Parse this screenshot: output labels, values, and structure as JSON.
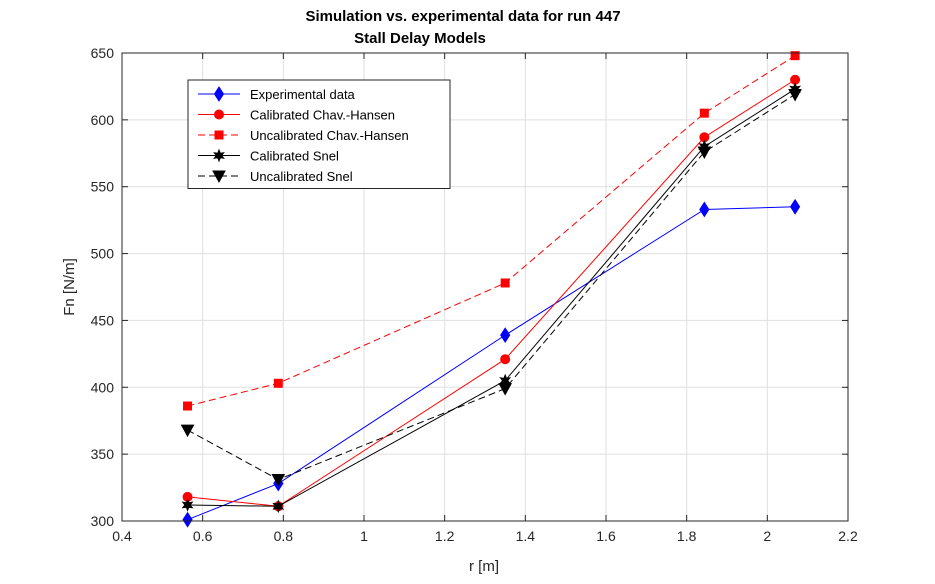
{
  "chart_data": {
    "type": "line",
    "title": "Simulation vs. experimental data for run 447",
    "subtitle": "Stall Delay Models",
    "xlabel": "r [m]",
    "ylabel": "Fn [N/m]",
    "xlim": [
      0.4,
      2.2
    ],
    "ylim": [
      300,
      650
    ],
    "xticks": [
      0.4,
      0.6,
      0.8,
      1.0,
      1.2,
      1.4,
      1.6,
      1.8,
      2.0,
      2.2
    ],
    "xtick_labels": [
      "0.4",
      "0.6",
      "0.8",
      "1",
      "1.2",
      "1.4",
      "1.6",
      "1.8",
      "2",
      "2.2"
    ],
    "yticks": [
      300,
      350,
      400,
      450,
      500,
      550,
      600,
      650
    ],
    "ytick_labels": [
      "300",
      "350",
      "400",
      "450",
      "500",
      "550",
      "600",
      "650"
    ],
    "grid": true,
    "legend_position": "top-left",
    "x": [
      0.5625,
      0.7875,
      1.35,
      1.8438,
      2.0688
    ],
    "series": [
      {
        "name": "Experimental data",
        "values": [
          301,
          328,
          439,
          533,
          535
        ],
        "color": "#0000ff",
        "dash": "solid",
        "marker": "diamond"
      },
      {
        "name": "Calibrated Chav.-Hansen",
        "values": [
          318,
          311,
          421,
          587,
          630
        ],
        "color": "#ff0000",
        "dash": "solid",
        "marker": "circle"
      },
      {
        "name": "Uncalibrated Chav.-Hansen",
        "values": [
          386,
          403,
          478,
          605,
          648
        ],
        "color": "#ff0000",
        "dash": "dashed",
        "marker": "square"
      },
      {
        "name": "Calibrated Snel",
        "values": [
          312,
          311,
          405,
          580,
          623
        ],
        "color": "#000000",
        "dash": "solid",
        "marker": "hexagram"
      },
      {
        "name": "Uncalibrated Snel",
        "values": [
          368,
          331,
          399,
          576,
          619
        ],
        "color": "#000000",
        "dash": "dashed",
        "marker": "triangle-down"
      }
    ]
  }
}
